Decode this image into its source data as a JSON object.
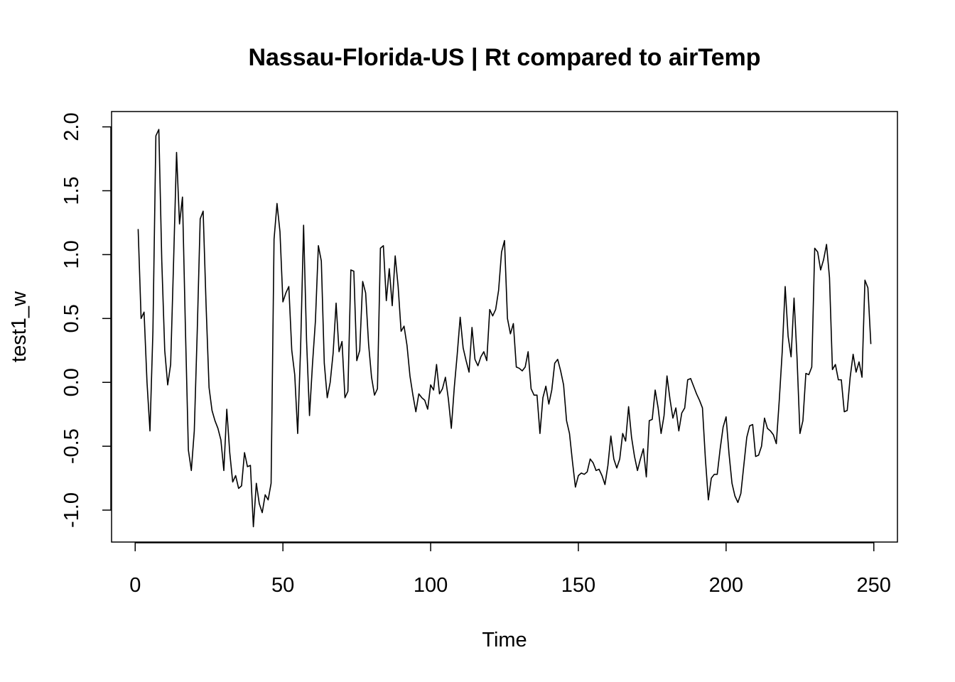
{
  "chart_data": {
    "type": "line",
    "title": "Nassau-Florida-US | Rt compared to airTemp",
    "xlabel": "Time",
    "ylabel": "test1_w",
    "xlim": [
      -8,
      258
    ],
    "ylim": [
      -1.25,
      2.12
    ],
    "x_ticks": [
      0,
      50,
      100,
      150,
      200,
      250
    ],
    "y_ticks": [
      -1.0,
      -0.5,
      0.0,
      0.5,
      1.0,
      1.5,
      2.0
    ],
    "x_tick_labels": [
      "0",
      "50",
      "100",
      "150",
      "200",
      "250"
    ],
    "y_tick_labels": [
      "-1.0",
      "-0.5",
      "0.0",
      "0.5",
      "1.0",
      "1.5",
      "2.0"
    ],
    "grid": false,
    "series": [
      {
        "name": "",
        "x_start": 1,
        "values": [
          1.2,
          0.5,
          0.55,
          0.0,
          -0.38,
          0.4,
          1.93,
          1.98,
          0.95,
          0.25,
          -0.02,
          0.14,
          0.95,
          1.8,
          1.24,
          1.45,
          0.42,
          -0.53,
          -0.69,
          -0.38,
          0.4,
          1.28,
          1.34,
          0.6,
          -0.04,
          -0.22,
          -0.3,
          -0.36,
          -0.45,
          -0.69,
          -0.21,
          -0.55,
          -0.78,
          -0.73,
          -0.83,
          -0.81,
          -0.55,
          -0.66,
          -0.65,
          -1.13,
          -0.79,
          -0.95,
          -1.02,
          -0.88,
          -0.92,
          -0.79,
          1.12,
          1.4,
          1.18,
          0.63,
          0.7,
          0.75,
          0.25,
          0.06,
          -0.4,
          0.28,
          1.23,
          0.33,
          -0.26,
          0.14,
          0.48,
          1.07,
          0.95,
          0.15,
          -0.12,
          0.0,
          0.23,
          0.62,
          0.24,
          0.32,
          -0.12,
          -0.07,
          0.88,
          0.87,
          0.17,
          0.25,
          0.79,
          0.7,
          0.3,
          0.04,
          -0.1,
          -0.05,
          1.05,
          1.07,
          0.64,
          0.89,
          0.6,
          0.99,
          0.75,
          0.4,
          0.44,
          0.29,
          0.05,
          -0.1,
          -0.23,
          -0.09,
          -0.12,
          -0.14,
          -0.21,
          -0.02,
          -0.06,
          0.14,
          -0.09,
          -0.05,
          0.04,
          -0.13,
          -0.36,
          -0.04,
          0.22,
          0.51,
          0.27,
          0.17,
          0.08,
          0.43,
          0.18,
          0.13,
          0.2,
          0.24,
          0.17,
          0.57,
          0.52,
          0.57,
          0.72,
          1.02,
          1.11,
          0.5,
          0.38,
          0.46,
          0.12,
          0.11,
          0.09,
          0.12,
          0.24,
          -0.05,
          -0.1,
          -0.1,
          -0.4,
          -0.12,
          -0.03,
          -0.17,
          -0.06,
          0.15,
          0.18,
          0.09,
          -0.02,
          -0.3,
          -0.4,
          -0.62,
          -0.82,
          -0.73,
          -0.71,
          -0.72,
          -0.7,
          -0.6,
          -0.63,
          -0.69,
          -0.68,
          -0.73,
          -0.8,
          -0.65,
          -0.42,
          -0.6,
          -0.67,
          -0.6,
          -0.4,
          -0.46,
          -0.19,
          -0.43,
          -0.58,
          -0.69,
          -0.6,
          -0.52,
          -0.74,
          -0.3,
          -0.29,
          -0.06,
          -0.2,
          -0.4,
          -0.26,
          0.05,
          -0.13,
          -0.28,
          -0.2,
          -0.38,
          -0.24,
          -0.2,
          0.02,
          0.03,
          -0.03,
          -0.09,
          -0.14,
          -0.2,
          -0.6,
          -0.92,
          -0.75,
          -0.72,
          -0.72,
          -0.52,
          -0.35,
          -0.27,
          -0.56,
          -0.79,
          -0.89,
          -0.94,
          -0.87,
          -0.65,
          -0.43,
          -0.34,
          -0.33,
          -0.58,
          -0.57,
          -0.5,
          -0.28,
          -0.36,
          -0.38,
          -0.41,
          -0.48,
          -0.14,
          0.24,
          0.75,
          0.36,
          0.2,
          0.66,
          0.2,
          -0.4,
          -0.3,
          0.07,
          0.06,
          0.12,
          1.05,
          1.02,
          0.88,
          0.96,
          1.08,
          0.82,
          0.1,
          0.14,
          0.02,
          0.02,
          -0.23,
          -0.22,
          0.04,
          0.22,
          0.08,
          0.16,
          0.04,
          0.8,
          0.74,
          0.3
        ]
      }
    ]
  }
}
